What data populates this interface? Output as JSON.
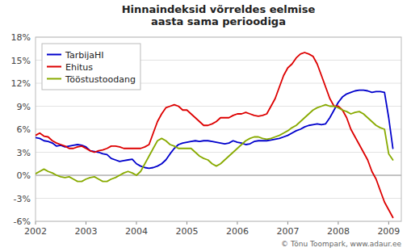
{
  "chart_data": {
    "type": "line",
    "title": "Hinnaindeksid võrreldes eelmise\naasta sama perioodiga",
    "annotations": [
      "© Tõnu Toompark, www.adaur.ee"
    ],
    "xlim": [
      2002.0,
      2009.25
    ],
    "xticks": [
      2002,
      2003,
      2004,
      2005,
      2006,
      2007,
      2008,
      2009
    ],
    "ylim": [
      -6,
      18
    ],
    "yticks": [
      {
        "value": -6,
        "label": "-6%"
      },
      {
        "value": -3,
        "label": "-3%"
      },
      {
        "value": 0,
        "label": "0%"
      },
      {
        "value": 3,
        "label": "3%"
      },
      {
        "value": 6,
        "label": "6%"
      },
      {
        "value": 9,
        "label": "9%"
      },
      {
        "value": 12,
        "label": "12%"
      },
      {
        "value": 15,
        "label": "15%"
      },
      {
        "value": 18,
        "label": "18%"
      }
    ],
    "grid": true,
    "legend": "upper left",
    "x": [
      2002.0,
      2002.083,
      2002.167,
      2002.25,
      2002.333,
      2002.417,
      2002.5,
      2002.583,
      2002.667,
      2002.75,
      2002.833,
      2002.917,
      2003.0,
      2003.083,
      2003.167,
      2003.25,
      2003.333,
      2003.417,
      2003.5,
      2003.583,
      2003.667,
      2003.75,
      2003.833,
      2003.917,
      2004.0,
      2004.083,
      2004.167,
      2004.25,
      2004.333,
      2004.417,
      2004.5,
      2004.583,
      2004.667,
      2004.75,
      2004.833,
      2004.917,
      2005.0,
      2005.083,
      2005.167,
      2005.25,
      2005.333,
      2005.417,
      2005.5,
      2005.583,
      2005.667,
      2005.75,
      2005.833,
      2005.917,
      2006.0,
      2006.083,
      2006.167,
      2006.25,
      2006.333,
      2006.417,
      2006.5,
      2006.583,
      2006.667,
      2006.75,
      2006.833,
      2006.917,
      2007.0,
      2007.083,
      2007.167,
      2007.25,
      2007.333,
      2007.417,
      2007.5,
      2007.583,
      2007.667,
      2007.75,
      2007.833,
      2007.917,
      2008.0,
      2008.083,
      2008.167,
      2008.25,
      2008.333,
      2008.417,
      2008.5,
      2008.583,
      2008.667,
      2008.75,
      2008.833,
      2008.917,
      2009.0,
      2009.083
    ],
    "series": [
      {
        "name": "TarbijaHI",
        "color": "#0000cc",
        "values": [
          4.9,
          4.8,
          4.5,
          4.4,
          4.2,
          3.8,
          3.9,
          3.7,
          3.8,
          3.9,
          4.0,
          3.9,
          3.7,
          3.2,
          3.1,
          3.0,
          2.8,
          2.7,
          2.2,
          2.0,
          1.8,
          1.9,
          2.0,
          2.1,
          1.5,
          1.2,
          1.0,
          0.9,
          1.0,
          1.2,
          1.5,
          2.0,
          2.8,
          3.5,
          4.0,
          4.2,
          4.3,
          4.4,
          4.5,
          4.4,
          4.5,
          4.5,
          4.4,
          4.3,
          4.2,
          4.1,
          4.2,
          4.5,
          4.3,
          4.2,
          4.0,
          4.1,
          4.4,
          4.5,
          4.5,
          4.5,
          4.6,
          4.7,
          4.8,
          5.0,
          5.2,
          5.5,
          5.8,
          6.0,
          6.3,
          6.5,
          6.6,
          6.7,
          6.6,
          6.7,
          7.5,
          8.5,
          9.5,
          10.2,
          10.6,
          10.8,
          11.0,
          11.1,
          11.1,
          11.0,
          10.8,
          10.9,
          10.9,
          10.8,
          7.5,
          3.5
        ]
      },
      {
        "name": "Ehitus",
        "color": "#dd0000",
        "values": [
          5.2,
          5.5,
          5.1,
          5.0,
          4.5,
          4.2,
          4.0,
          3.8,
          3.5,
          3.5,
          3.7,
          3.8,
          3.5,
          3.2,
          3.0,
          3.2,
          3.3,
          3.5,
          3.8,
          3.8,
          3.7,
          3.5,
          3.5,
          3.5,
          3.5,
          3.5,
          3.7,
          4.0,
          5.5,
          7.0,
          8.0,
          8.8,
          9.0,
          9.2,
          9.0,
          8.5,
          8.5,
          8.0,
          7.5,
          7.0,
          6.5,
          6.5,
          6.7,
          7.0,
          7.5,
          7.5,
          7.5,
          7.8,
          8.0,
          8.0,
          8.2,
          8.0,
          7.8,
          7.7,
          7.8,
          8.0,
          9.0,
          10.0,
          11.5,
          13.0,
          14.0,
          14.5,
          15.3,
          15.8,
          16.0,
          15.8,
          15.5,
          14.5,
          13.0,
          11.5,
          10.0,
          9.0,
          9.0,
          8.5,
          7.5,
          6.0,
          5.0,
          4.0,
          3.0,
          2.0,
          0.5,
          -0.5,
          -2.0,
          -3.5,
          -4.5,
          -5.5
        ]
      },
      {
        "name": "Tööstustoodang",
        "color": "#88aa00",
        "values": [
          0.2,
          0.5,
          0.8,
          0.5,
          0.3,
          0.0,
          -0.2,
          -0.3,
          -0.2,
          -0.5,
          -0.8,
          -0.8,
          -0.5,
          -0.3,
          -0.2,
          -0.5,
          -0.8,
          -0.8,
          -0.5,
          -0.3,
          0.0,
          0.3,
          0.5,
          0.3,
          0.0,
          0.5,
          1.5,
          2.5,
          3.5,
          4.5,
          4.8,
          4.5,
          4.0,
          3.8,
          3.5,
          3.5,
          3.5,
          3.5,
          3.0,
          2.5,
          2.2,
          2.0,
          1.5,
          1.2,
          1.5,
          2.0,
          2.5,
          3.0,
          3.5,
          4.0,
          4.5,
          4.8,
          5.0,
          5.0,
          4.8,
          4.7,
          4.8,
          5.0,
          5.2,
          5.5,
          5.8,
          6.2,
          6.5,
          7.0,
          7.5,
          8.0,
          8.5,
          8.8,
          9.0,
          9.2,
          9.0,
          9.0,
          8.8,
          8.5,
          8.3,
          8.0,
          8.2,
          8.3,
          8.0,
          7.5,
          7.0,
          6.5,
          6.2,
          6.0,
          2.8,
          2.0
        ]
      }
    ]
  }
}
